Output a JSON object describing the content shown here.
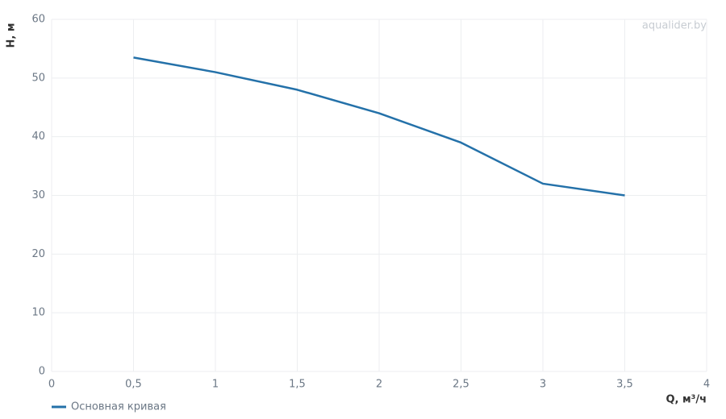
{
  "chart_data": {
    "type": "line",
    "x": [
      0.5,
      1,
      1.5,
      2,
      2.5,
      3,
      3.5
    ],
    "series": [
      {
        "name": "Основная кривая",
        "color": "#2471a9",
        "values": [
          53.5,
          51,
          48,
          44,
          39,
          32,
          30
        ]
      }
    ],
    "xlim": [
      0,
      4
    ],
    "xticks": [
      0,
      {
        "value": 0.5,
        "label": "0,5"
      },
      1,
      {
        "value": 1.5,
        "label": "1,5"
      },
      2,
      {
        "value": 2.5,
        "label": "2,5"
      },
      3,
      {
        "value": 3.5,
        "label": "3,5"
      },
      4
    ],
    "ylim": [
      0,
      60
    ],
    "yticks": [
      0,
      10,
      20,
      30,
      40,
      50,
      60
    ],
    "xlabel": "Q, м³/ч",
    "ylabel": "H, м",
    "watermark": "aqualider.by",
    "grid": true
  }
}
